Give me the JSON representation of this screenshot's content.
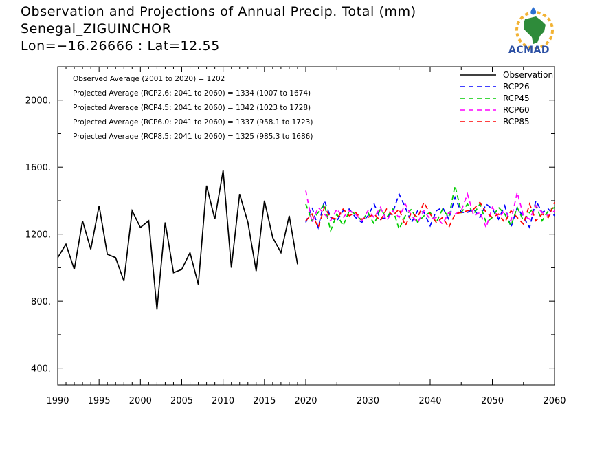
{
  "header": {
    "title_line1": "Observation and Projections of Annual Precip. Total (mm)",
    "title_line2": "Senegal_ZIGUINCHOR",
    "title_line3": "Lon=−16.26666 : Lat=12.55"
  },
  "logo": {
    "text": "ACMAD"
  },
  "stats": [
    "Observed Average (2001 to 2020) = 1202",
    "Projected Average (RCP2.6: 2041 to 2060) = 1334 (1007 to 1674)",
    "Projected Average (RCP4.5: 2041 to 2060) = 1342 (1023 to 1728)",
    "Projected Average (RCP6.0: 2041 to 2060) = 1337 (958.1 to 1723)",
    "Projected Average (RCP8.5: 2041 to 2060) = 1325 (985.3 to 1686)"
  ],
  "chart_data": {
    "type": "line",
    "title": "Observation and Projections of Annual Precip. Total (mm)",
    "xlabel": "",
    "ylabel": "",
    "xlim": [
      1990,
      2060
    ],
    "ylim": [
      300,
      2200
    ],
    "yticks": [
      400,
      800,
      1200,
      1600,
      2000
    ],
    "ytick_labels": [
      "400.",
      "800.",
      "1200.",
      "1600.",
      "2000."
    ],
    "xtick_labels_left": [
      "1990",
      "1995",
      "2000",
      "2005",
      "2010",
      "2015",
      "2020"
    ],
    "xtick_labels_right": [
      "2030",
      "2040",
      "2050",
      "2060"
    ],
    "grid": false,
    "legend_position": "top-right",
    "series": [
      {
        "name": "Observation",
        "color": "#000000",
        "dash": "solid",
        "x": [
          1990,
          1991,
          1992,
          1993,
          1994,
          1995,
          1996,
          1997,
          1998,
          1999,
          2000,
          2001,
          2002,
          2003,
          2004,
          2005,
          2006,
          2007,
          2008,
          2009,
          2010,
          2011,
          2012,
          2013,
          2014,
          2015,
          2016,
          2017,
          2018,
          2019
        ],
        "y": [
          1060,
          1140,
          990,
          1280,
          1110,
          1370,
          1080,
          1060,
          920,
          1340,
          1240,
          1280,
          750,
          1270,
          970,
          990,
          1090,
          900,
          1490,
          1290,
          1580,
          1000,
          1440,
          1270,
          980,
          1400,
          1180,
          1090,
          1310,
          1020
        ]
      },
      {
        "name": "RCP26",
        "color": "#0000ff",
        "dash": "dashed",
        "x": [
          2020,
          2021,
          2022,
          2023,
          2024,
          2025,
          2026,
          2027,
          2028,
          2029,
          2030,
          2031,
          2032,
          2033,
          2034,
          2035,
          2036,
          2037,
          2038,
          2039,
          2040,
          2041,
          2042,
          2043,
          2044,
          2045,
          2046,
          2047,
          2048,
          2049,
          2050,
          2051,
          2052,
          2053,
          2054,
          2055,
          2056,
          2057,
          2058,
          2059,
          2060
        ],
        "y": [
          1270,
          1360,
          1240,
          1400,
          1300,
          1280,
          1340,
          1350,
          1300,
          1270,
          1310,
          1380,
          1290,
          1300,
          1330,
          1440,
          1360,
          1270,
          1340,
          1330,
          1250,
          1340,
          1360,
          1290,
          1420,
          1330,
          1330,
          1350,
          1300,
          1380,
          1350,
          1290,
          1370,
          1240,
          1360,
          1300,
          1240,
          1400,
          1330,
          1350,
          1310
        ]
      },
      {
        "name": "RCP45",
        "color": "#00cc00",
        "dash": "dashed",
        "x": [
          2020,
          2021,
          2022,
          2023,
          2024,
          2025,
          2026,
          2027,
          2028,
          2029,
          2030,
          2031,
          2032,
          2033,
          2034,
          2035,
          2036,
          2037,
          2038,
          2039,
          2040,
          2041,
          2042,
          2043,
          2044,
          2045,
          2046,
          2047,
          2048,
          2049,
          2050,
          2051,
          2052,
          2053,
          2054,
          2055,
          2056,
          2057,
          2058,
          2059,
          2060
        ],
        "y": [
          1380,
          1280,
          1330,
          1380,
          1220,
          1320,
          1250,
          1340,
          1320,
          1280,
          1330,
          1260,
          1350,
          1300,
          1350,
          1230,
          1310,
          1350,
          1270,
          1310,
          1330,
          1270,
          1350,
          1300,
          1490,
          1330,
          1380,
          1320,
          1380,
          1270,
          1300,
          1360,
          1320,
          1250,
          1360,
          1280,
          1330,
          1370,
          1280,
          1340,
          1360
        ]
      },
      {
        "name": "RCP60",
        "color": "#ff00ff",
        "dash": "dashed",
        "x": [
          2020,
          2021,
          2022,
          2023,
          2024,
          2025,
          2026,
          2027,
          2028,
          2029,
          2030,
          2031,
          2032,
          2033,
          2034,
          2035,
          2036,
          2037,
          2038,
          2039,
          2040,
          2041,
          2042,
          2043,
          2044,
          2045,
          2046,
          2047,
          2048,
          2049,
          2050,
          2051,
          2052,
          2053,
          2054,
          2055,
          2056,
          2057,
          2058,
          2059,
          2060
        ],
        "y": [
          1460,
          1270,
          1360,
          1320,
          1280,
          1350,
          1300,
          1340,
          1320,
          1280,
          1340,
          1300,
          1360,
          1280,
          1340,
          1300,
          1380,
          1310,
          1270,
          1340,
          1290,
          1300,
          1260,
          1330,
          1320,
          1340,
          1440,
          1310,
          1330,
          1240,
          1360,
          1300,
          1340,
          1280,
          1450,
          1310,
          1290,
          1370,
          1330,
          1310,
          1340
        ]
      },
      {
        "name": "RCP85",
        "color": "#ff0000",
        "dash": "dashed",
        "x": [
          2020,
          2021,
          2022,
          2023,
          2024,
          2025,
          2026,
          2027,
          2028,
          2029,
          2030,
          2031,
          2032,
          2033,
          2034,
          2035,
          2036,
          2037,
          2038,
          2039,
          2040,
          2041,
          2042,
          2043,
          2044,
          2045,
          2046,
          2047,
          2048,
          2049,
          2050,
          2051,
          2052,
          2053,
          2054,
          2055,
          2056,
          2057,
          2058,
          2059,
          2060
        ],
        "y": [
          1280,
          1320,
          1240,
          1360,
          1300,
          1290,
          1350,
          1310,
          1330,
          1290,
          1300,
          1320,
          1280,
          1350,
          1310,
          1350,
          1250,
          1330,
          1300,
          1390,
          1320,
          1270,
          1300,
          1240,
          1320,
          1330,
          1340,
          1350,
          1390,
          1330,
          1300,
          1320,
          1270,
          1340,
          1300,
          1260,
          1380,
          1280,
          1320,
          1300,
          1390
        ]
      }
    ]
  }
}
